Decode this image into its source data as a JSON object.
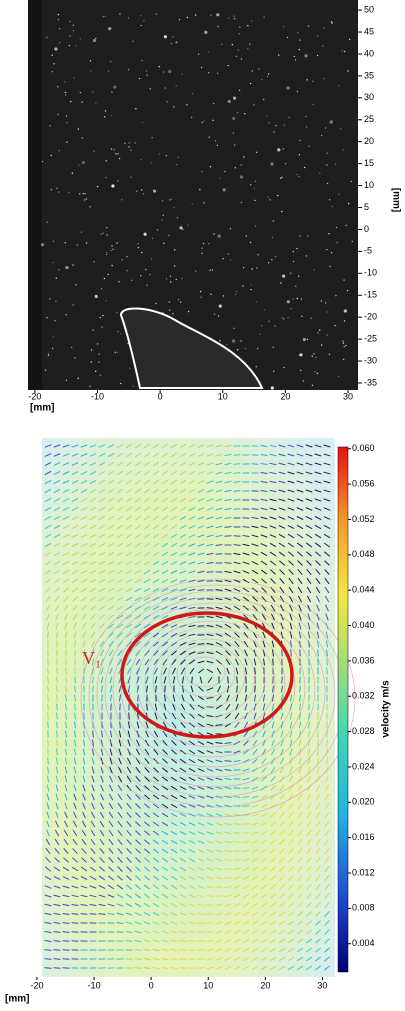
{
  "chart_data": [
    {
      "type": "image",
      "xlim": [
        -21.1,
        31.6
      ],
      "xticks": [
        -20,
        -10,
        0,
        10,
        20,
        30
      ],
      "ylim": [
        -36.6,
        52.3
      ],
      "yticks": [
        -35,
        -30,
        -25,
        -20,
        -15,
        -10,
        -5,
        0,
        5,
        10,
        15,
        20,
        25,
        30,
        35,
        40,
        45,
        50
      ],
      "x_label": "[mm]",
      "y_label": "[mm]"
    },
    {
      "type": "vector-field",
      "xlim": [
        -24.2,
        32.2
      ],
      "xticks": [
        -20,
        -10,
        0,
        10,
        20,
        30
      ],
      "x_label": "[mm]",
      "annotation": "V₁",
      "colorbar_label": "velocity m/s",
      "clim": [
        0.0008,
        0.0602
      ],
      "cticks": [
        0.004,
        0.008,
        0.012,
        0.016,
        {
          "value": 0.02,
          "label": "0.020"
        },
        0.024,
        0.028,
        0.032,
        0.036,
        {
          "value": 0.04,
          "label": "0.040"
        },
        0.044,
        0.048,
        0.052,
        0.056,
        {
          "value": 0.06,
          "label": "0.060"
        }
      ]
    }
  ]
}
